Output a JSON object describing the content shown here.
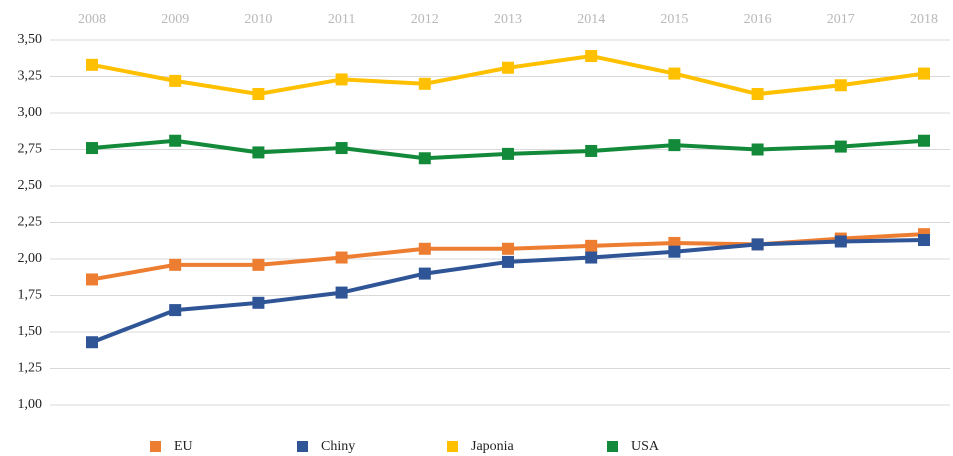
{
  "chart_data": {
    "type": "line",
    "categories": [
      "2008",
      "2009",
      "2010",
      "2011",
      "2012",
      "2013",
      "2014",
      "2015",
      "2016",
      "2017",
      "2018"
    ],
    "series": [
      {
        "name": "EU",
        "color": "#ed7d31",
        "values": [
          1.86,
          1.96,
          1.96,
          2.01,
          2.07,
          2.07,
          2.09,
          2.11,
          2.1,
          2.14,
          2.17
        ]
      },
      {
        "name": "Chiny",
        "color": "#2f5597",
        "values": [
          1.43,
          1.65,
          1.7,
          1.77,
          1.9,
          1.98,
          2.01,
          2.05,
          2.1,
          2.12,
          2.13
        ]
      },
      {
        "name": "Japonia",
        "color": "#ffc000",
        "values": [
          3.33,
          3.22,
          3.13,
          3.23,
          3.2,
          3.31,
          3.39,
          3.27,
          3.13,
          3.19,
          3.27
        ]
      },
      {
        "name": "USA",
        "color": "#138a3a",
        "values": [
          2.76,
          2.81,
          2.73,
          2.76,
          2.69,
          2.72,
          2.74,
          2.78,
          2.75,
          2.77,
          2.81
        ]
      }
    ],
    "ylim": [
      1.0,
      3.5
    ],
    "yticks": [
      {
        "value": 1.0,
        "label": "1,00"
      },
      {
        "value": 1.25,
        "label": "1,25"
      },
      {
        "value": 1.5,
        "label": "1,50"
      },
      {
        "value": 1.75,
        "label": "1,75"
      },
      {
        "value": 2.0,
        "label": "2,00"
      },
      {
        "value": 2.25,
        "label": "2,25"
      },
      {
        "value": 2.5,
        "label": "2,50"
      },
      {
        "value": 2.75,
        "label": "2,75"
      },
      {
        "value": 3.0,
        "label": "3,00"
      },
      {
        "value": 3.25,
        "label": "3,25"
      },
      {
        "value": 3.5,
        "label": "3,50"
      }
    ],
    "grid": true,
    "legend": "bottom"
  }
}
